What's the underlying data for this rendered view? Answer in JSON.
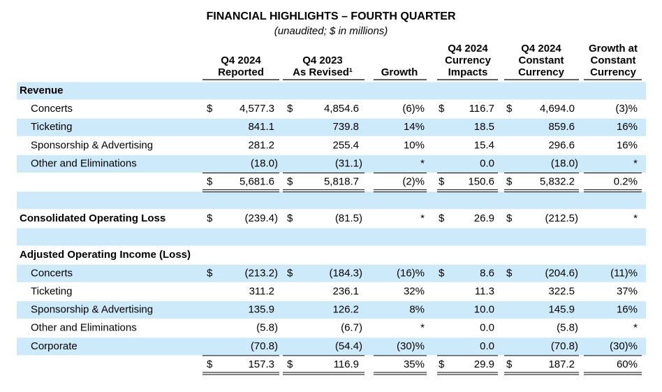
{
  "header": {
    "title": "FINANCIAL HIGHLIGHTS – FOURTH QUARTER",
    "subtitle": "(unaudited; $ in millions)"
  },
  "columns": [
    [
      "Q4 2024",
      "Reported"
    ],
    [
      "Q4 2023",
      "As Revised¹"
    ],
    [
      "Growth"
    ],
    [
      "Q4 2024",
      "Currency",
      "Impacts"
    ],
    [
      "Q4 2024",
      "Constant",
      "Currency"
    ],
    [
      "Growth at",
      "Constant",
      "Currency"
    ]
  ],
  "sections": [
    {
      "title": "Revenue",
      "rows": [
        {
          "label": "Concerts",
          "cells": [
            {
              "sign": "$",
              "text": "4,577.3"
            },
            {
              "sign": "$",
              "text": "4,854.6"
            },
            "(6)%",
            {
              "sign": "$",
              "text": "116.7"
            },
            {
              "sign": "$",
              "text": "4,694.0"
            },
            "(3)%"
          ]
        },
        {
          "label": "Ticketing",
          "cells": [
            "841.1",
            "739.8",
            "14%",
            "18.5",
            "859.6",
            "16%"
          ]
        },
        {
          "label": "Sponsorship & Advertising",
          "cells": [
            "281.2",
            "255.4",
            "10%",
            "15.4",
            "296.6",
            "16%"
          ]
        },
        {
          "label": "Other and Eliminations",
          "cells": [
            "(18.0)",
            "(31.1)",
            "*",
            "0.0",
            "(18.0)",
            "*"
          ]
        }
      ],
      "total": [
        {
          "sign": "$",
          "text": "5,681.6"
        },
        {
          "sign": "$",
          "text": "5,818.7"
        },
        "(2)%",
        {
          "sign": "$",
          "text": "150.6"
        },
        {
          "sign": "$",
          "text": "5,832.2"
        },
        "0.2%"
      ]
    },
    {
      "rows": [
        {
          "label": "Consolidated Operating Loss",
          "cells": [
            {
              "sign": "$",
              "text": "(239.4)"
            },
            {
              "sign": "$",
              "text": "(81.5)"
            },
            "*",
            {
              "sign": "$",
              "text": "26.9"
            },
            {
              "sign": "$",
              "text": "(212.5)"
            },
            "*"
          ]
        }
      ]
    },
    {
      "title": "Adjusted Operating Income (Loss)",
      "rows": [
        {
          "label": "Concerts",
          "cells": [
            {
              "sign": "$",
              "text": "(213.2)"
            },
            {
              "sign": "$",
              "text": "(184.3)"
            },
            "(16)%",
            {
              "sign": "$",
              "text": "8.6"
            },
            {
              "sign": "$",
              "text": "(204.6)"
            },
            "(11)%"
          ]
        },
        {
          "label": "Ticketing",
          "cells": [
            "311.2",
            "236.1",
            "32%",
            "11.3",
            "322.5",
            "37%"
          ]
        },
        {
          "label": "Sponsorship & Advertising",
          "cells": [
            "135.9",
            "126.2",
            "8%",
            "10.0",
            "145.9",
            "16%"
          ]
        },
        {
          "label": "Other and Eliminations",
          "cells": [
            "(5.8)",
            "(6.7)",
            "*",
            "0.0",
            "(5.8)",
            "*"
          ]
        },
        {
          "label": "Corporate",
          "cells": [
            "(70.8)",
            "(54.4)",
            "(30)%",
            "0.0",
            "(70.8)",
            "(30)%"
          ]
        }
      ],
      "total": [
        {
          "sign": "$",
          "text": "157.3"
        },
        {
          "sign": "$",
          "text": "116.9"
        },
        "35%",
        {
          "sign": "$",
          "text": "29.9"
        },
        {
          "sign": "$",
          "text": "187.2"
        },
        "60%"
      ]
    }
  ]
}
